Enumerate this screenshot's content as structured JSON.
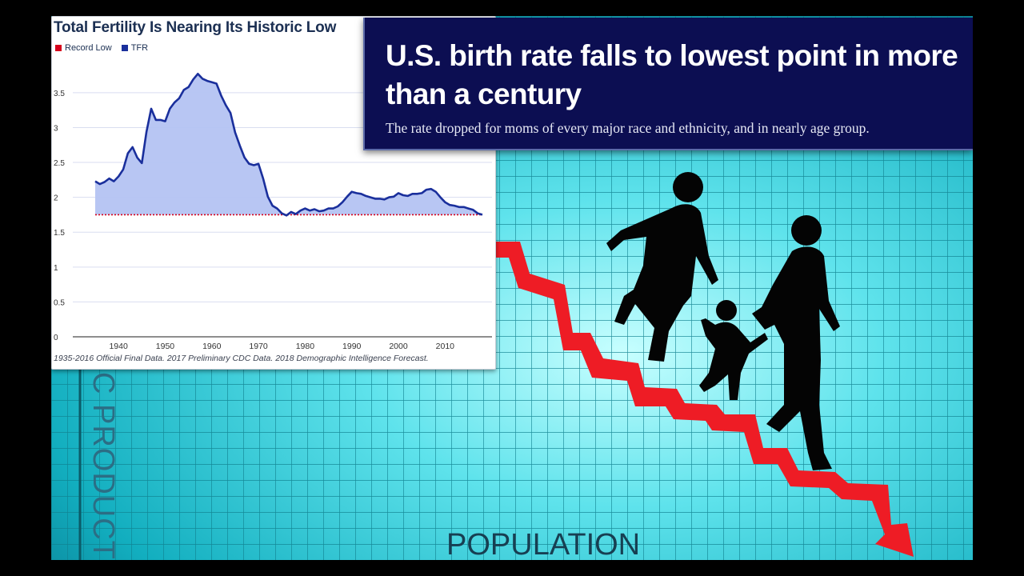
{
  "chart_data": {
    "type": "line",
    "title": "Total Fertility Is Nearing Its Historic Low",
    "legend": [
      {
        "label": "Record Low",
        "color": "#d6001c"
      },
      {
        "label": "TFR",
        "color": "#1a2f9c"
      }
    ],
    "legend_position": "top-left",
    "xlabel": "",
    "ylabel": "",
    "xlim": [
      1935,
      2018
    ],
    "ylim": [
      0,
      3.9
    ],
    "x_ticks": [
      1940,
      1950,
      1960,
      1970,
      1980,
      1990,
      2000,
      2010
    ],
    "y_ticks": [
      "0",
      "0.5",
      "1",
      "1.5",
      "2",
      "2.5",
      "3",
      "3.5"
    ],
    "grid": true,
    "series": [
      {
        "name": "TFR",
        "x": [
          1935,
          1936,
          1937,
          1938,
          1939,
          1940,
          1941,
          1942,
          1943,
          1944,
          1945,
          1946,
          1947,
          1948,
          1949,
          1950,
          1951,
          1952,
          1953,
          1954,
          1955,
          1956,
          1957,
          1958,
          1959,
          1960,
          1961,
          1962,
          1963,
          1964,
          1965,
          1966,
          1967,
          1968,
          1969,
          1970,
          1971,
          1972,
          1973,
          1974,
          1975,
          1976,
          1977,
          1978,
          1979,
          1980,
          1981,
          1982,
          1983,
          1984,
          1985,
          1986,
          1987,
          1988,
          1989,
          1990,
          1991,
          1992,
          1993,
          1994,
          1995,
          1996,
          1997,
          1998,
          1999,
          2000,
          2001,
          2002,
          2003,
          2004,
          2005,
          2006,
          2007,
          2008,
          2009,
          2010,
          2011,
          2012,
          2013,
          2014,
          2015,
          2016,
          2017,
          2018
        ],
        "y": [
          2.23,
          2.19,
          2.22,
          2.27,
          2.23,
          2.3,
          2.4,
          2.63,
          2.72,
          2.57,
          2.49,
          2.94,
          3.27,
          3.11,
          3.11,
          3.09,
          3.27,
          3.36,
          3.42,
          3.54,
          3.58,
          3.69,
          3.77,
          3.7,
          3.67,
          3.65,
          3.63,
          3.46,
          3.32,
          3.21,
          2.93,
          2.74,
          2.57,
          2.48,
          2.46,
          2.48,
          2.27,
          2.01,
          1.88,
          1.84,
          1.77,
          1.74,
          1.79,
          1.76,
          1.81,
          1.84,
          1.81,
          1.83,
          1.8,
          1.81,
          1.84,
          1.84,
          1.87,
          1.93,
          2.01,
          2.08,
          2.06,
          2.05,
          2.02,
          2.0,
          1.98,
          1.98,
          1.97,
          2.0,
          2.01,
          2.06,
          2.03,
          2.02,
          2.05,
          2.05,
          2.06,
          2.11,
          2.12,
          2.08,
          2.0,
          1.93,
          1.89,
          1.88,
          1.86,
          1.86,
          1.84,
          1.82,
          1.77,
          1.75
        ]
      },
      {
        "name": "Record Low",
        "y": 1.75
      }
    ],
    "source_note": "1935-2016 Official Final Data. 2017 Preliminary CDC Data. 2018 Demographic Intelligence Forecast."
  },
  "headline": {
    "title": "U.S. birth rate falls to lowest point in more than a century",
    "subtitle": "The rate dropped for moms of every major race and ethnicity, and in nearly age group."
  },
  "background": {
    "axis_label_bottom": "POPULATION",
    "axis_label_side": "C PRODUCT",
    "grid_color": "#29c7d3",
    "arrow_color": "#ee1c25"
  }
}
